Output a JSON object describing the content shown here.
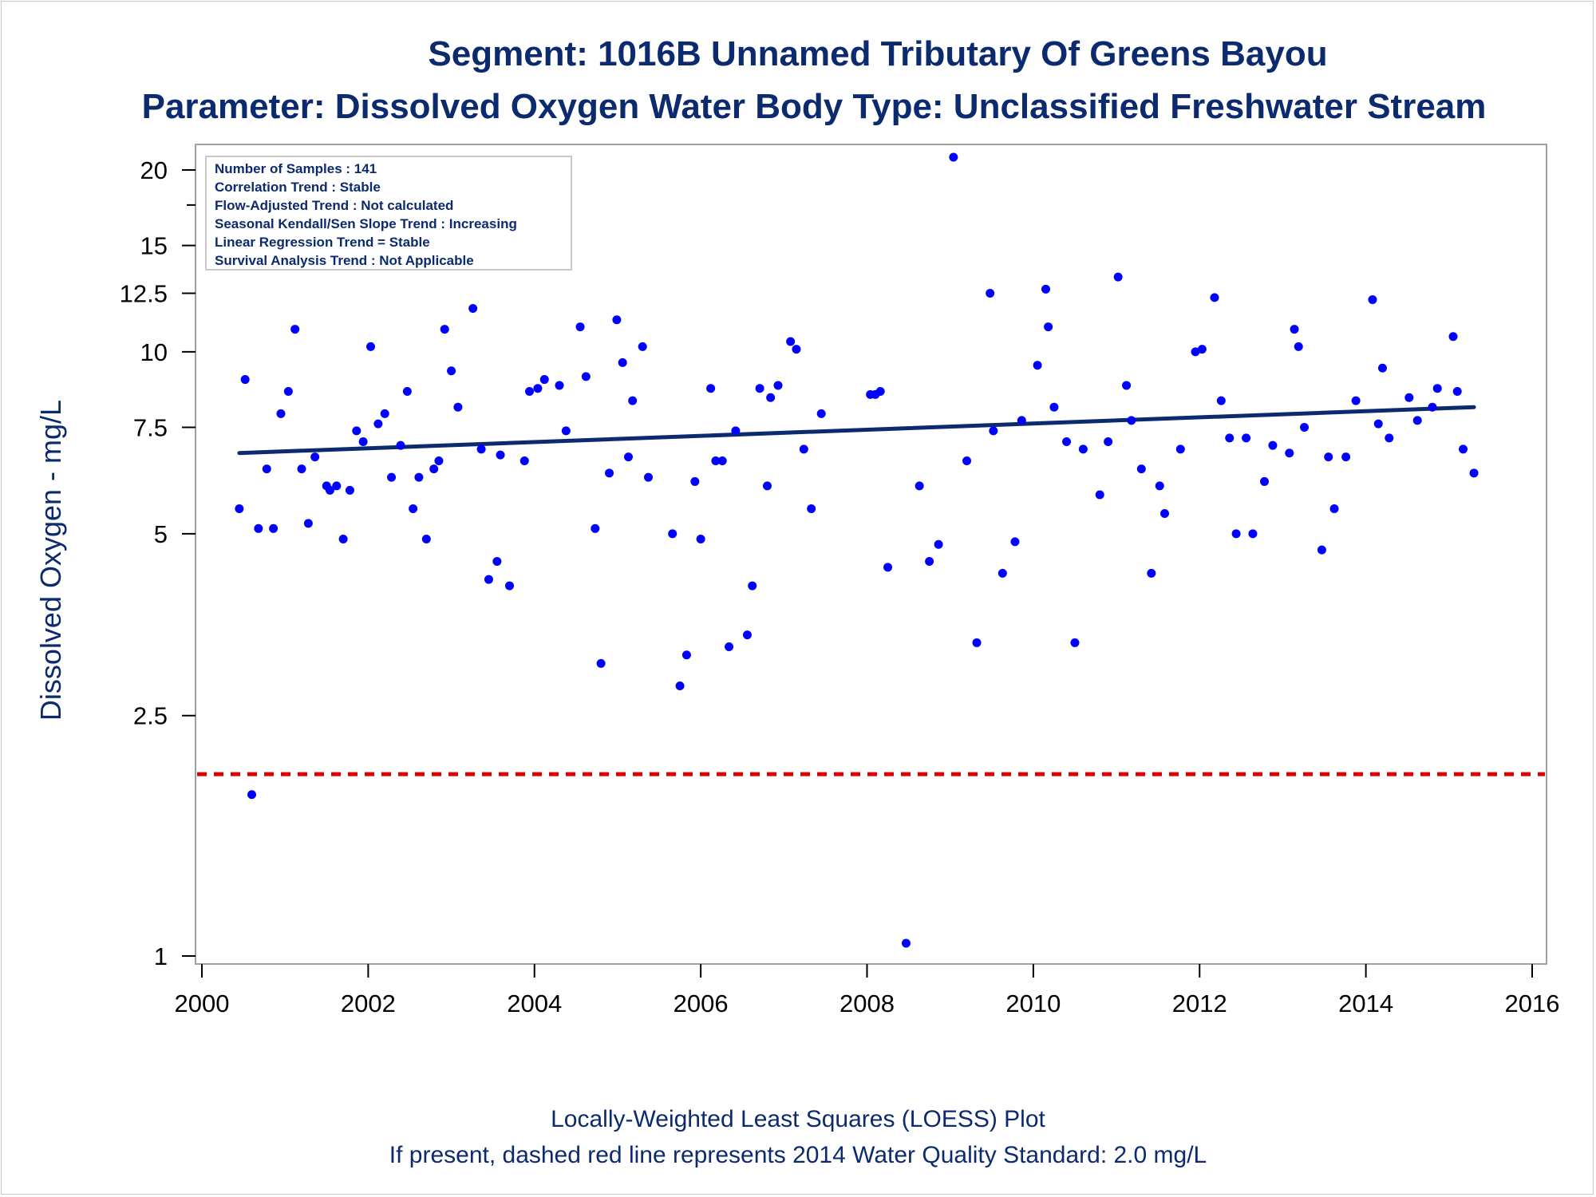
{
  "chart_data": {
    "type": "scatter",
    "title": "Segment: 1016B  Unnamed Tributary Of Greens Bayou",
    "subtitle": "Parameter: Dissolved Oxygen   Water Body Type: Unclassified Freshwater Stream",
    "xlabel": "",
    "ylabel": "Dissolved Oxygen - mg/L",
    "xlim": [
      2000,
      2016
    ],
    "ylim": [
      1,
      21
    ],
    "y_scale": "log",
    "x_ticks": [
      2000,
      2002,
      2004,
      2006,
      2008,
      2010,
      2012,
      2014,
      2016
    ],
    "y_ticks": [
      1,
      2.5,
      5,
      7.5,
      10,
      12.5,
      15,
      20
    ],
    "grid": false,
    "info_box": {
      "placement": "top-left",
      "lines": [
        "Number of Samples : 141",
        "Correlation Trend : Stable",
        "Flow-Adjusted Trend : Not calculated",
        "Seasonal Kendall/Sen Slope Trend : Increasing",
        "Linear Regression Trend = Stable",
        "Survival Analysis Trend : Not Applicable"
      ]
    },
    "footnotes": [
      "Locally-Weighted Least Squares (LOESS) Plot",
      "If present, dashed red line represents 2014 Water Quality Standard: 2.0 mg/L"
    ],
    "trend_line": {
      "x": [
        2000.45,
        2015.3
      ],
      "y": [
        6.8,
        8.1
      ],
      "color": "#0c2a6e"
    },
    "standard_line": {
      "y": 2.0,
      "color": "#dd0000"
    },
    "series": [
      {
        "color": "#0000ff",
        "points": [
          [
            2000.45,
            5.5
          ],
          [
            2000.52,
            9.0
          ],
          [
            2000.6,
            1.85
          ],
          [
            2000.68,
            5.1
          ],
          [
            2000.78,
            6.4
          ],
          [
            2000.86,
            5.1
          ],
          [
            2000.95,
            7.9
          ],
          [
            2001.04,
            8.6
          ],
          [
            2001.12,
            10.9
          ],
          [
            2001.2,
            6.4
          ],
          [
            2001.28,
            5.2
          ],
          [
            2001.36,
            6.7
          ],
          [
            2001.5,
            6.0
          ],
          [
            2001.54,
            5.9
          ],
          [
            2001.62,
            6.0
          ],
          [
            2001.7,
            4.9
          ],
          [
            2001.78,
            5.9
          ],
          [
            2001.86,
            7.4
          ],
          [
            2001.94,
            7.1
          ],
          [
            2002.03,
            10.2
          ],
          [
            2002.12,
            7.6
          ],
          [
            2002.2,
            7.9
          ],
          [
            2002.28,
            6.2
          ],
          [
            2002.39,
            7.0
          ],
          [
            2002.47,
            8.6
          ],
          [
            2002.54,
            5.5
          ],
          [
            2002.61,
            6.2
          ],
          [
            2002.7,
            4.9
          ],
          [
            2002.79,
            6.4
          ],
          [
            2002.85,
            6.6
          ],
          [
            2002.92,
            10.9
          ],
          [
            2003.0,
            9.3
          ],
          [
            2003.08,
            8.1
          ],
          [
            2003.26,
            11.8
          ],
          [
            2003.36,
            6.9
          ],
          [
            2003.45,
            4.2
          ],
          [
            2003.55,
            4.5
          ],
          [
            2003.59,
            6.75
          ],
          [
            2003.7,
            4.1
          ],
          [
            2003.88,
            6.6
          ],
          [
            2003.94,
            8.6
          ],
          [
            2004.04,
            8.7
          ],
          [
            2004.12,
            9.0
          ],
          [
            2004.3,
            8.8
          ],
          [
            2004.38,
            7.4
          ],
          [
            2004.55,
            11.0
          ],
          [
            2004.62,
            9.1
          ],
          [
            2004.73,
            5.1
          ],
          [
            2004.8,
            3.05
          ],
          [
            2004.9,
            6.3
          ],
          [
            2004.99,
            11.3
          ],
          [
            2005.06,
            9.6
          ],
          [
            2005.13,
            6.7
          ],
          [
            2005.18,
            8.3
          ],
          [
            2005.3,
            10.2
          ],
          [
            2005.37,
            6.2
          ],
          [
            2005.66,
            5.0
          ],
          [
            2005.75,
            2.8
          ],
          [
            2005.83,
            3.15
          ],
          [
            2005.93,
            6.1
          ],
          [
            2006.0,
            4.9
          ],
          [
            2006.12,
            8.7
          ],
          [
            2006.18,
            6.6
          ],
          [
            2006.26,
            6.6
          ],
          [
            2006.34,
            3.25
          ],
          [
            2006.42,
            7.4
          ],
          [
            2006.56,
            3.4
          ],
          [
            2006.62,
            4.1
          ],
          [
            2006.71,
            8.7
          ],
          [
            2006.8,
            6.0
          ],
          [
            2006.84,
            8.4
          ],
          [
            2006.93,
            8.8
          ],
          [
            2007.08,
            10.4
          ],
          [
            2007.15,
            10.1
          ],
          [
            2007.24,
            6.9
          ],
          [
            2007.33,
            5.5
          ],
          [
            2007.45,
            7.9
          ],
          [
            2008.04,
            8.5
          ],
          [
            2008.1,
            8.5
          ],
          [
            2008.16,
            8.6
          ],
          [
            2008.25,
            4.4
          ],
          [
            2008.47,
            1.05
          ],
          [
            2008.63,
            6.0
          ],
          [
            2008.75,
            4.5
          ],
          [
            2008.86,
            4.8
          ],
          [
            2009.04,
            21.0
          ],
          [
            2009.2,
            6.6
          ],
          [
            2009.32,
            3.3
          ],
          [
            2009.48,
            12.5
          ],
          [
            2009.52,
            7.4
          ],
          [
            2009.63,
            4.3
          ],
          [
            2009.78,
            4.85
          ],
          [
            2009.86,
            7.7
          ],
          [
            2010.05,
            9.5
          ],
          [
            2010.15,
            12.7
          ],
          [
            2010.18,
            11.0
          ],
          [
            2010.25,
            8.1
          ],
          [
            2010.4,
            7.1
          ],
          [
            2010.5,
            3.3
          ],
          [
            2010.6,
            6.9
          ],
          [
            2010.8,
            5.8
          ],
          [
            2010.9,
            7.1
          ],
          [
            2011.02,
            13.3
          ],
          [
            2011.12,
            8.8
          ],
          [
            2011.18,
            7.7
          ],
          [
            2011.3,
            6.4
          ],
          [
            2011.42,
            4.3
          ],
          [
            2011.52,
            6.0
          ],
          [
            2011.58,
            5.4
          ],
          [
            2011.77,
            6.9
          ],
          [
            2011.95,
            10.0
          ],
          [
            2012.03,
            10.1
          ],
          [
            2012.18,
            12.3
          ],
          [
            2012.26,
            8.3
          ],
          [
            2012.36,
            7.2
          ],
          [
            2012.44,
            5.0
          ],
          [
            2012.56,
            7.2
          ],
          [
            2012.64,
            5.0
          ],
          [
            2012.78,
            6.1
          ],
          [
            2012.88,
            7.0
          ],
          [
            2013.08,
            6.8
          ],
          [
            2013.14,
            10.9
          ],
          [
            2013.19,
            10.2
          ],
          [
            2013.26,
            7.5
          ],
          [
            2013.47,
            4.7
          ],
          [
            2013.55,
            6.7
          ],
          [
            2013.62,
            5.5
          ],
          [
            2013.76,
            6.7
          ],
          [
            2013.88,
            8.3
          ],
          [
            2014.08,
            12.2
          ],
          [
            2014.15,
            7.6
          ],
          [
            2014.2,
            9.4
          ],
          [
            2014.28,
            7.2
          ],
          [
            2014.52,
            8.4
          ],
          [
            2014.62,
            7.7
          ],
          [
            2014.8,
            8.1
          ],
          [
            2014.86,
            8.7
          ],
          [
            2015.05,
            10.6
          ],
          [
            2015.1,
            8.6
          ],
          [
            2015.17,
            6.9
          ],
          [
            2015.3,
            6.3
          ]
        ]
      }
    ]
  }
}
